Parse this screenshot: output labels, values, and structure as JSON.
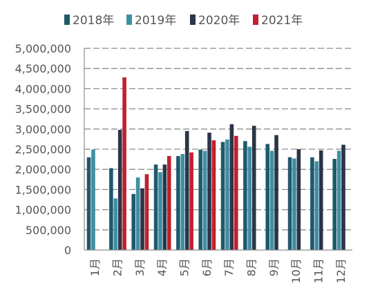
{
  "chart_data": {
    "type": "bar",
    "title": "",
    "xlabel": "",
    "ylabel": "",
    "categories": [
      "1月",
      "2月",
      "3月",
      "4月",
      "5月",
      "6月",
      "7月",
      "8月",
      "9月",
      "10月",
      "11月",
      "12月"
    ],
    "series": [
      {
        "name": "2018年",
        "color": "#1f5a6b",
        "values": [
          2300000,
          2030000,
          1390000,
          2120000,
          2330000,
          2490000,
          2680000,
          2700000,
          2630000,
          2300000,
          2300000,
          2260000
        ]
      },
      {
        "name": "2019年",
        "color": "#3e8fa3",
        "values": [
          2490000,
          1280000,
          1800000,
          1930000,
          2380000,
          2460000,
          2740000,
          2560000,
          2460000,
          2270000,
          2200000,
          2460000
        ]
      },
      {
        "name": "2020年",
        "color": "#2a3547",
        "values": [
          null,
          2980000,
          1530000,
          2120000,
          2950000,
          2910000,
          3120000,
          3080000,
          2850000,
          2500000,
          2470000,
          2610000
        ]
      },
      {
        "name": "2021年",
        "color": "#c0202f",
        "values": [
          null,
          4280000,
          1880000,
          2330000,
          2420000,
          2720000,
          2830000,
          null,
          null,
          null,
          null,
          null
        ]
      }
    ],
    "yticks": [
      "0",
      "500,000",
      "1,000,000",
      "1,500,000",
      "2,000,000",
      "2,500,000",
      "3,000,000",
      "3,500,000",
      "4,000,000",
      "4,500,000",
      "5,000,000"
    ],
    "ylim": [
      0,
      5000000
    ],
    "grid": true,
    "legend_position": "top"
  }
}
